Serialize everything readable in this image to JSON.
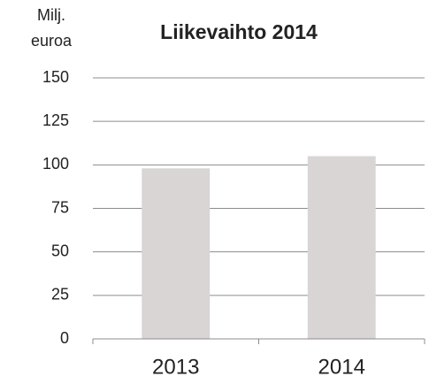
{
  "chart_data": {
    "type": "bar",
    "title": "Liikevaihto 2014",
    "ylabel": [
      "Milj.",
      "euroa"
    ],
    "categories": [
      "2013",
      "2014"
    ],
    "values": [
      98,
      105
    ],
    "color": "#d9d5d5",
    "ylim": [
      0,
      150
    ],
    "yticks": [
      0,
      25,
      50,
      75,
      100,
      125,
      150
    ],
    "grid": true
  }
}
